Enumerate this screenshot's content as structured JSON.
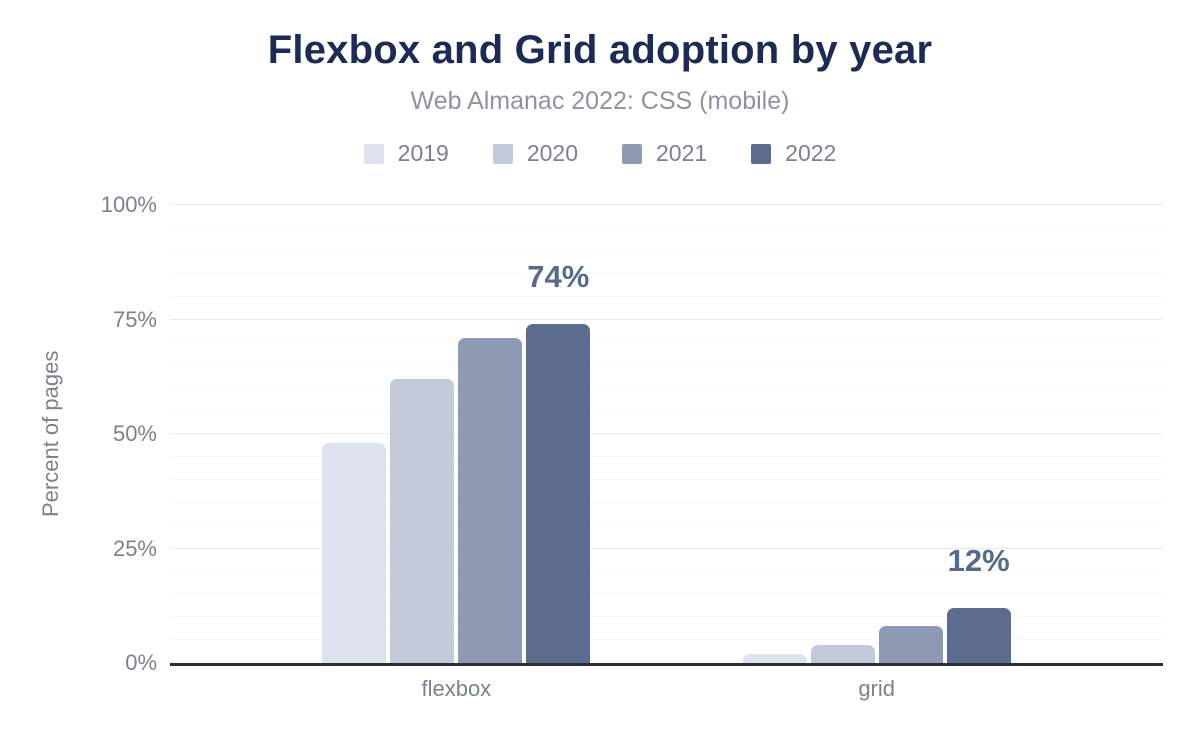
{
  "chart_data": {
    "type": "bar",
    "title": "Flexbox and Grid adoption by year",
    "subtitle": "Web Almanac 2022: CSS (mobile)",
    "ylabel": "Percent of pages",
    "xlabel": "",
    "categories": [
      "flexbox",
      "grid"
    ],
    "series": [
      {
        "name": "2019",
        "color": "#dee3ee",
        "values": [
          48,
          2
        ]
      },
      {
        "name": "2020",
        "color": "#c2c9d8",
        "values": [
          62,
          4
        ]
      },
      {
        "name": "2021",
        "color": "#8e9ab4",
        "values": [
          71,
          8
        ]
      },
      {
        "name": "2022",
        "color": "#5b6c8e",
        "values": [
          74,
          12
        ]
      }
    ],
    "annotations": [
      {
        "category_index": 0,
        "series_index": 3,
        "text": "74%"
      },
      {
        "category_index": 1,
        "series_index": 3,
        "text": "12%"
      }
    ],
    "y_ticks": [
      {
        "label": "0%",
        "value": 0
      },
      {
        "label": "25%",
        "value": 25
      },
      {
        "label": "50%",
        "value": 50
      },
      {
        "label": "75%",
        "value": 75
      },
      {
        "label": "100%",
        "value": 100
      }
    ],
    "ylim": [
      0,
      100
    ],
    "grid": {
      "minor_step": 5,
      "major_step": 25,
      "visible": true
    },
    "legend_position": "top",
    "colors": {
      "title": "#1b2b55",
      "subtitle": "#8c93a3",
      "axis_text": "#7a8191",
      "annotation": "#56698f",
      "axis_line": "#2e2e38",
      "gridline_minor": "#f6f6f8",
      "gridline_major": "#ebebee"
    }
  }
}
